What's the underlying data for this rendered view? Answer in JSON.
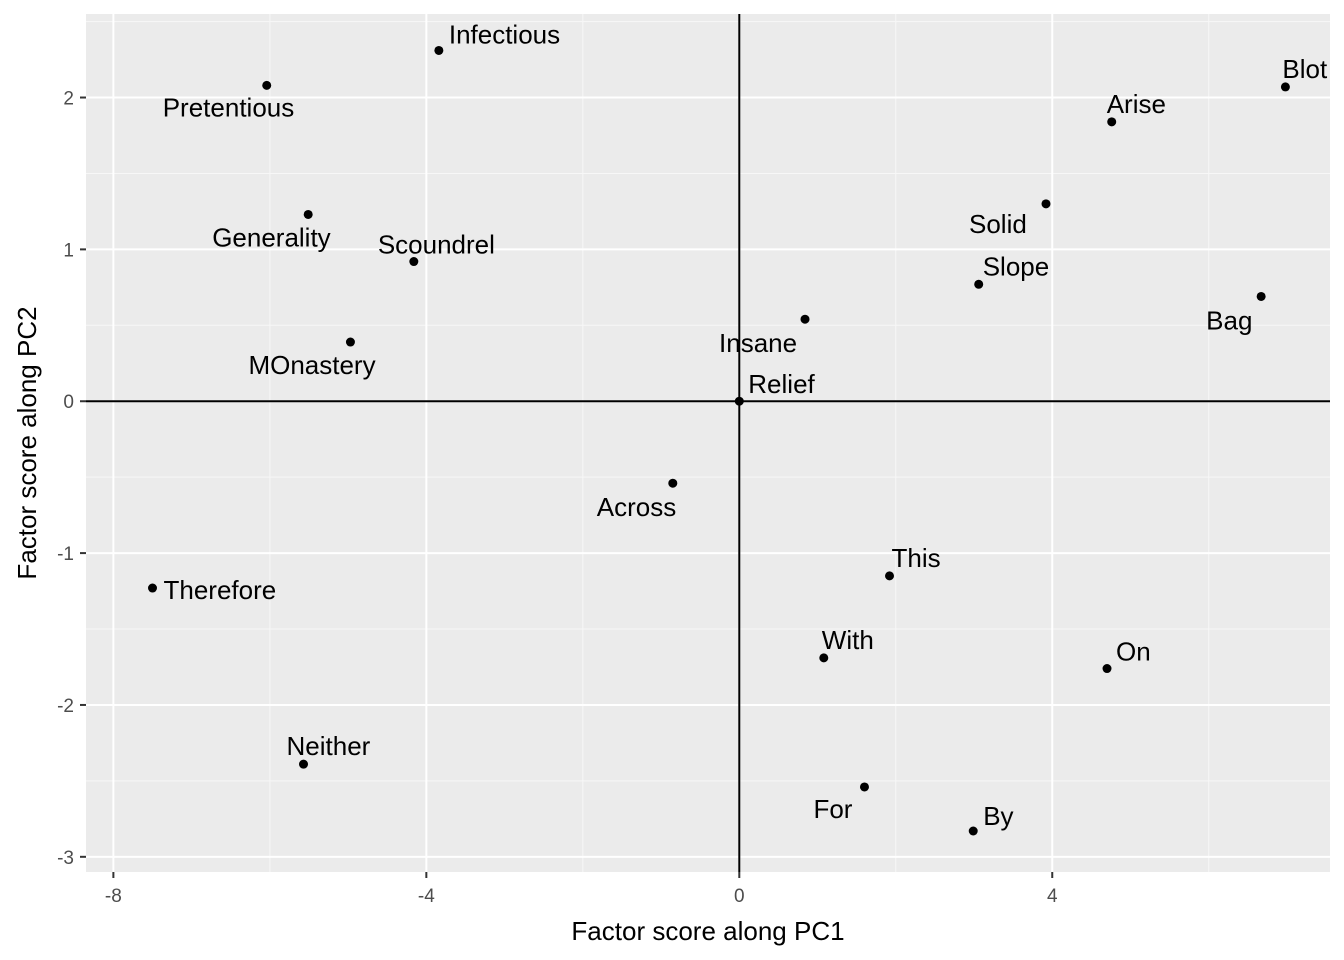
{
  "chart_data": {
    "type": "scatter",
    "xlabel": "Factor score along PC1",
    "ylabel": "Factor score along PC2",
    "xlim": [
      -8.35,
      7.55
    ],
    "ylim": [
      -3.1,
      2.55
    ],
    "x_ticks": [
      -8,
      -4,
      0,
      4
    ],
    "x_tick_labels": [
      "-8",
      "-4",
      "0",
      "4"
    ],
    "y_ticks": [
      -3,
      -2,
      -1,
      0,
      1,
      2
    ],
    "y_tick_labels": [
      "-3",
      "-2",
      "-1",
      "0",
      "1",
      "2"
    ],
    "grid": true,
    "reference_lines": {
      "x": 0,
      "y": 0
    },
    "points": [
      {
        "label": "Infectious",
        "x": -3.84,
        "y": 2.31
      },
      {
        "label": "Pretentious",
        "x": -6.04,
        "y": 2.08
      },
      {
        "label": "Generality",
        "x": -5.51,
        "y": 1.23
      },
      {
        "label": "Scoundrel",
        "x": -4.16,
        "y": 0.92
      },
      {
        "label": "MOnastery",
        "x": -4.97,
        "y": 0.39
      },
      {
        "label": "Therefore",
        "x": -7.5,
        "y": -1.23
      },
      {
        "label": "Neither",
        "x": -5.57,
        "y": -2.39
      },
      {
        "label": "Across",
        "x": -0.85,
        "y": -0.54
      },
      {
        "label": "Relief",
        "x": 0.0,
        "y": 0.0
      },
      {
        "label": "Insane",
        "x": 0.84,
        "y": 0.54
      },
      {
        "label": "This",
        "x": 1.92,
        "y": -1.15
      },
      {
        "label": "With",
        "x": 1.08,
        "y": -1.69
      },
      {
        "label": "For",
        "x": 1.6,
        "y": -2.54
      },
      {
        "label": "By",
        "x": 2.99,
        "y": -2.83
      },
      {
        "label": "Slope",
        "x": 3.06,
        "y": 0.77
      },
      {
        "label": "Solid",
        "x": 3.92,
        "y": 1.3
      },
      {
        "label": "Arise",
        "x": 4.76,
        "y": 1.84
      },
      {
        "label": "On",
        "x": 4.7,
        "y": -1.76
      },
      {
        "label": "Bag",
        "x": 6.67,
        "y": 0.69
      },
      {
        "label": "Blot",
        "x": 6.98,
        "y": 2.07
      }
    ]
  }
}
